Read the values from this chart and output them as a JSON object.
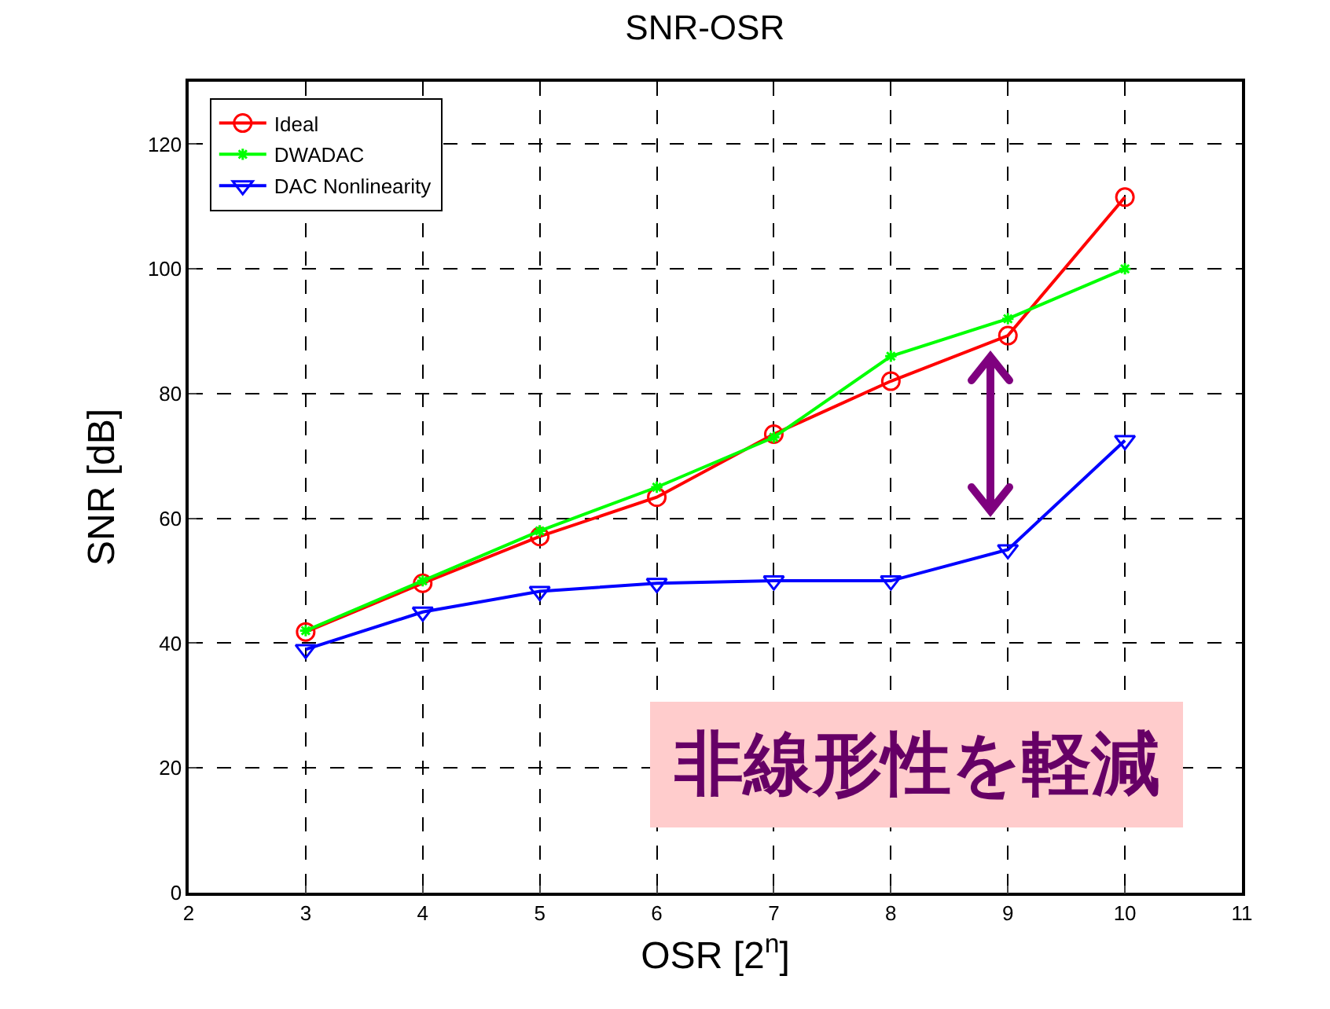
{
  "chart_data": {
    "type": "line",
    "title": "SNR-OSR",
    "xlabel": "OSR [2$^{n}$]",
    "ylabel": "SNR [dB]",
    "x": [
      3,
      4,
      5,
      6,
      7,
      8,
      9,
      10
    ],
    "series": [
      {
        "name": "Ideal",
        "color": "#ff0000",
        "marker": "circle",
        "values": [
          41.8,
          49.6,
          57.1,
          63.4,
          73.5,
          82,
          89.3,
          111.5
        ]
      },
      {
        "name": "DWADAC",
        "color": "#00ff00",
        "marker": "cross",
        "values": [
          42,
          50,
          58,
          65,
          73,
          86,
          92,
          100
        ]
      },
      {
        "name": "DAC Nonlinearity",
        "color": "#0000ff",
        "marker": "triangle",
        "values": [
          39,
          45,
          48.3,
          49.6,
          50,
          50,
          55,
          72.5
        ]
      }
    ],
    "xlim": [
      2,
      11
    ],
    "xticks": [
      2,
      3,
      4,
      5,
      6,
      7,
      8,
      9,
      10,
      11
    ],
    "ylim": [
      0,
      130
    ],
    "yticks": [
      0,
      20,
      40,
      60,
      80,
      100,
      120
    ],
    "grid": true,
    "legend": "top left",
    "line_style": "solid",
    "annotations": [
      "非線形性を軽減"
    ]
  }
}
